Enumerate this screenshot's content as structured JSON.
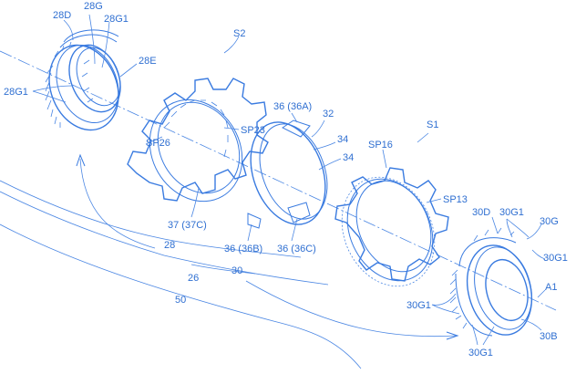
{
  "figure": {
    "labels": {
      "l28D": "28D",
      "l28G": "28G",
      "l28G1_top": "28G1",
      "l28E": "28E",
      "l28G1_left": "28G1",
      "lS2": "S2",
      "lSP23": "SP23",
      "lSP26": "SP26",
      "l37": "37 (37C)",
      "l36A": "36 (36A)",
      "l32": "32",
      "l34a": "34",
      "l34b": "34",
      "l36B": "36 (36B)",
      "l36C": "36 (36C)",
      "lS1": "S1",
      "lSP16": "SP16",
      "lSP13": "SP13",
      "l30D": "30D",
      "l30G1_top": "30G1",
      "l30G": "30G",
      "l30G1_right": "30G1",
      "lA1": "A1",
      "l30G1_left": "30G1",
      "l30B": "30B",
      "l30G1_bottom": "30G1",
      "l28": "28",
      "l26": "26",
      "l30": "30",
      "l50": "50"
    }
  }
}
